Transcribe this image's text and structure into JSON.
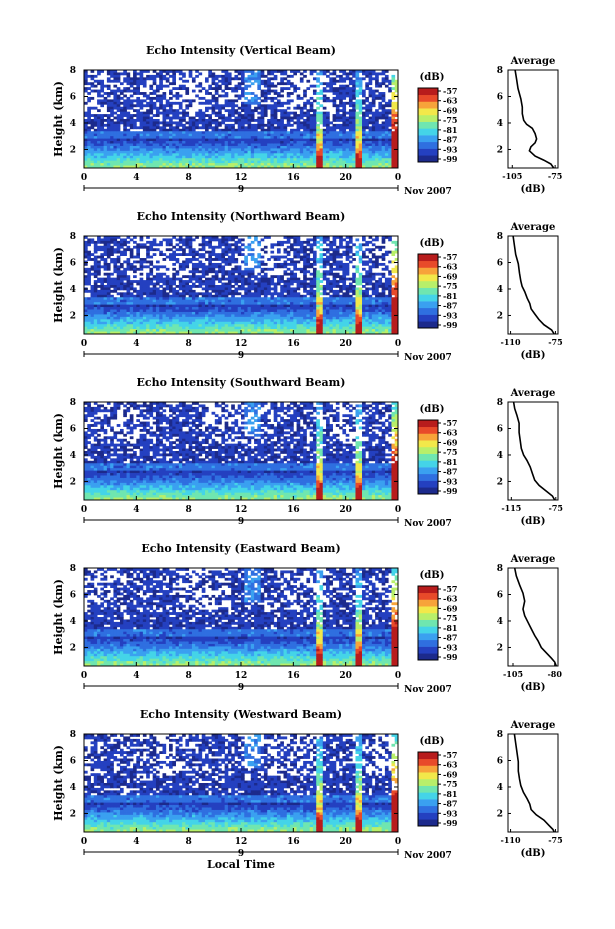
{
  "colors": {
    "scale": [
      "#1c2a8c",
      "#2440c0",
      "#2f6fe0",
      "#3aa0f0",
      "#44d4e8",
      "#6fe6b0",
      "#b8ef6a",
      "#f2e84a",
      "#f7a33a",
      "#e84a2a",
      "#b81c1c"
    ],
    "background": "#ffffff",
    "axis": "#000000",
    "profile_line": "#000000"
  },
  "chart_data": [
    {
      "type": "heatmap",
      "title": "Echo Intensity (Vertical Beam)",
      "ylabel": "Height (km)",
      "y_ticks": [
        "2",
        "4",
        "6",
        "8"
      ],
      "x_ticks": [
        "0",
        "4",
        "8",
        "12",
        "16",
        "20",
        "0"
      ],
      "x_day_labels": [
        "9"
      ],
      "date_label": "Nov 2007",
      "colorbar": {
        "unit": "(dB)",
        "ticks": [
          "-57",
          "-63",
          "-69",
          "-75",
          "-81",
          "-87",
          "-93",
          "-99"
        ]
      },
      "ylim": [
        0.6,
        8
      ],
      "grid": false,
      "profile": {
        "title": "Average",
        "xlabel": "(dB)",
        "x_ticks": [
          "-105",
          "-75"
        ],
        "y_ticks": [
          "2",
          "4",
          "6",
          "8"
        ],
        "xlim": [
          -108,
          -73
        ],
        "ylim": [
          0.6,
          8
        ],
        "points": [
          [
            -103,
            8
          ],
          [
            -102,
            7.3
          ],
          [
            -101,
            6.6
          ],
          [
            -99,
            5.8
          ],
          [
            -98,
            5.2
          ],
          [
            -98,
            4.7
          ],
          [
            -97,
            4.2
          ],
          [
            -95,
            3.9
          ],
          [
            -91,
            3.6
          ],
          [
            -89,
            3.2
          ],
          [
            -88,
            2.8
          ],
          [
            -89,
            2.5
          ],
          [
            -92,
            2.2
          ],
          [
            -93,
            1.9
          ],
          [
            -89,
            1.5
          ],
          [
            -83,
            1.2
          ],
          [
            -78,
            0.9
          ],
          [
            -76,
            0.6
          ]
        ]
      }
    },
    {
      "type": "heatmap",
      "title": "Echo Intensity (Northward Beam)",
      "ylabel": "Height (km)",
      "y_ticks": [
        "2",
        "4",
        "6",
        "8"
      ],
      "x_ticks": [
        "0",
        "4",
        "8",
        "12",
        "16",
        "20",
        "0"
      ],
      "x_day_labels": [
        "9"
      ],
      "date_label": "Nov 2007",
      "colorbar": {
        "unit": "(dB)",
        "ticks": [
          "-57",
          "-63",
          "-69",
          "-75",
          "-81",
          "-87",
          "-93",
          "-99"
        ]
      },
      "ylim": [
        0.6,
        8
      ],
      "grid": false,
      "profile": {
        "title": "Average",
        "xlabel": "(dB)",
        "x_ticks": [
          "-110",
          "-75"
        ],
        "y_ticks": [
          "2",
          "4",
          "6",
          "8"
        ],
        "xlim": [
          -112,
          -73
        ],
        "ylim": [
          0.6,
          8
        ],
        "points": [
          [
            -108,
            8
          ],
          [
            -107,
            7.3
          ],
          [
            -106,
            6.6
          ],
          [
            -104,
            5.9
          ],
          [
            -103,
            5.2
          ],
          [
            -102,
            4.6
          ],
          [
            -101,
            4.2
          ],
          [
            -99,
            3.8
          ],
          [
            -97,
            3.3
          ],
          [
            -95,
            2.9
          ],
          [
            -94,
            2.5
          ],
          [
            -91,
            2.1
          ],
          [
            -88,
            1.7
          ],
          [
            -84,
            1.3
          ],
          [
            -78,
            0.9
          ],
          [
            -76,
            0.6
          ]
        ]
      }
    },
    {
      "type": "heatmap",
      "title": "Echo Intensity (Southward Beam)",
      "ylabel": "Height (km)",
      "y_ticks": [
        "2",
        "4",
        "6",
        "8"
      ],
      "x_ticks": [
        "0",
        "4",
        "8",
        "12",
        "16",
        "20",
        "0"
      ],
      "x_day_labels": [
        "9"
      ],
      "date_label": "Nov 2007",
      "colorbar": {
        "unit": "(dB)",
        "ticks": [
          "-57",
          "-63",
          "-69",
          "-75",
          "-81",
          "-87",
          "-93",
          "-99"
        ]
      },
      "ylim": [
        0.6,
        8
      ],
      "grid": false,
      "profile": {
        "title": "Average",
        "xlabel": "(dB)",
        "x_ticks": [
          "-115",
          "-75"
        ],
        "y_ticks": [
          "2",
          "4",
          "6",
          "8"
        ],
        "xlim": [
          -118,
          -73
        ],
        "ylim": [
          0.6,
          8
        ],
        "points": [
          [
            -113,
            8
          ],
          [
            -112,
            7.5
          ],
          [
            -110,
            7.0
          ],
          [
            -108,
            6.4
          ],
          [
            -108,
            5.7
          ],
          [
            -107,
            5.1
          ],
          [
            -106,
            4.5
          ],
          [
            -104,
            4.0
          ],
          [
            -101,
            3.6
          ],
          [
            -98,
            3.1
          ],
          [
            -96,
            2.6
          ],
          [
            -94,
            2.1
          ],
          [
            -90,
            1.7
          ],
          [
            -84,
            1.3
          ],
          [
            -78,
            0.9
          ],
          [
            -76,
            0.6
          ]
        ]
      }
    },
    {
      "type": "heatmap",
      "title": "Echo Intensity (Eastward Beam)",
      "ylabel": "Height (km)",
      "y_ticks": [
        "2",
        "4",
        "6",
        "8"
      ],
      "x_ticks": [
        "0",
        "4",
        "8",
        "12",
        "16",
        "20",
        "0"
      ],
      "x_day_labels": [
        "9"
      ],
      "date_label": "Nov 2007",
      "colorbar": {
        "unit": "(dB)",
        "ticks": [
          "-57",
          "-63",
          "-69",
          "-75",
          "-81",
          "-87",
          "-93",
          "-99"
        ]
      },
      "ylim": [
        0.6,
        8
      ],
      "grid": false,
      "profile": {
        "title": "Average",
        "xlabel": "(dB)",
        "x_ticks": [
          "-105",
          "-80"
        ],
        "y_ticks": [
          "2",
          "4",
          "6",
          "8"
        ],
        "xlim": [
          -108,
          -78
        ],
        "ylim": [
          0.6,
          8
        ],
        "points": [
          [
            -104,
            8
          ],
          [
            -103,
            7.4
          ],
          [
            -101,
            6.7
          ],
          [
            -99,
            6.1
          ],
          [
            -98,
            5.5
          ],
          [
            -99,
            4.9
          ],
          [
            -98,
            4.4
          ],
          [
            -96,
            3.9
          ],
          [
            -94,
            3.4
          ],
          [
            -92,
            2.9
          ],
          [
            -90,
            2.5
          ],
          [
            -88,
            2.0
          ],
          [
            -85,
            1.6
          ],
          [
            -82,
            1.2
          ],
          [
            -80,
            0.9
          ],
          [
            -79,
            0.6
          ]
        ]
      }
    },
    {
      "type": "heatmap",
      "title": "Echo Intensity (Westward Beam)",
      "ylabel": "Height (km)",
      "y_ticks": [
        "2",
        "4",
        "6",
        "8"
      ],
      "x_ticks": [
        "0",
        "4",
        "8",
        "12",
        "16",
        "20",
        "0"
      ],
      "x_day_labels": [
        "9"
      ],
      "date_label": "Nov 2007",
      "xlabel": "Local Time",
      "colorbar": {
        "unit": "(dB)",
        "ticks": [
          "-57",
          "-63",
          "-69",
          "-75",
          "-81",
          "-87",
          "-93",
          "-99"
        ]
      },
      "ylim": [
        0.6,
        8
      ],
      "grid": false,
      "profile": {
        "title": "Average",
        "xlabel": "(dB)",
        "x_ticks": [
          "-110",
          "-75"
        ],
        "y_ticks": [
          "2",
          "4",
          "6",
          "8"
        ],
        "xlim": [
          -112,
          -73
        ],
        "ylim": [
          0.6,
          8
        ],
        "points": [
          [
            -107,
            8
          ],
          [
            -106,
            7.3
          ],
          [
            -105,
            6.6
          ],
          [
            -104,
            5.9
          ],
          [
            -104,
            5.2
          ],
          [
            -103,
            4.6
          ],
          [
            -102,
            4.1
          ],
          [
            -100,
            3.6
          ],
          [
            -97,
            3.1
          ],
          [
            -95,
            2.7
          ],
          [
            -94,
            2.3
          ],
          [
            -90,
            1.9
          ],
          [
            -84,
            1.5
          ],
          [
            -80,
            1.1
          ],
          [
            -77,
            0.8
          ],
          [
            -76,
            0.6
          ]
        ]
      }
    }
  ]
}
